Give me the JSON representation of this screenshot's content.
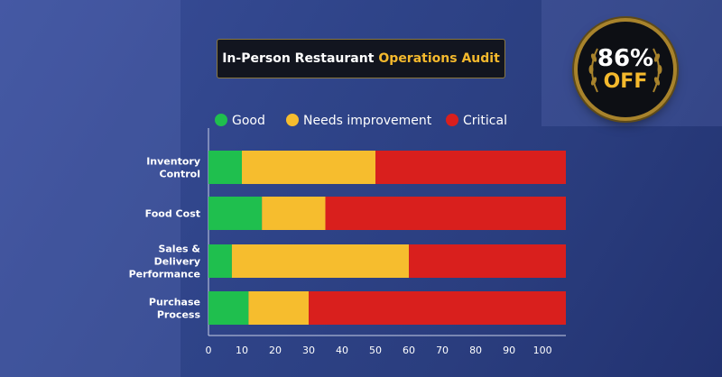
{
  "title": {
    "main": "In-Person Restaurant",
    "accent": "Operations Audit"
  },
  "badge": {
    "percent": "86%",
    "label": "OFF"
  },
  "colors": {
    "good": "#1fbf4e",
    "needs": "#f6bd2e",
    "critical": "#d91f1d",
    "accent": "#f4b92d"
  },
  "chart_data": {
    "type": "bar",
    "orientation": "horizontal",
    "stacked": true,
    "categories": [
      [
        "Inventory",
        "Control"
      ],
      [
        "Food Cost"
      ],
      [
        "Sales &",
        "Delivery",
        "Performance"
      ],
      [
        "Purchase",
        "Process"
      ]
    ],
    "series": [
      {
        "name": "Good",
        "color": "#1fbf4e",
        "values": [
          10,
          16,
          7,
          12
        ]
      },
      {
        "name": "Needs improvement",
        "color": "#f6bd2e",
        "values": [
          40,
          19,
          53,
          18
        ]
      },
      {
        "name": "Critical",
        "color": "#d91f1d",
        "values": [
          57,
          72,
          47,
          77
        ]
      }
    ],
    "xlim": [
      0,
      107
    ],
    "xticks": [
      0,
      10,
      20,
      30,
      40,
      50,
      60,
      70,
      80,
      90,
      100
    ],
    "legend_position": "top",
    "grid": false
  }
}
